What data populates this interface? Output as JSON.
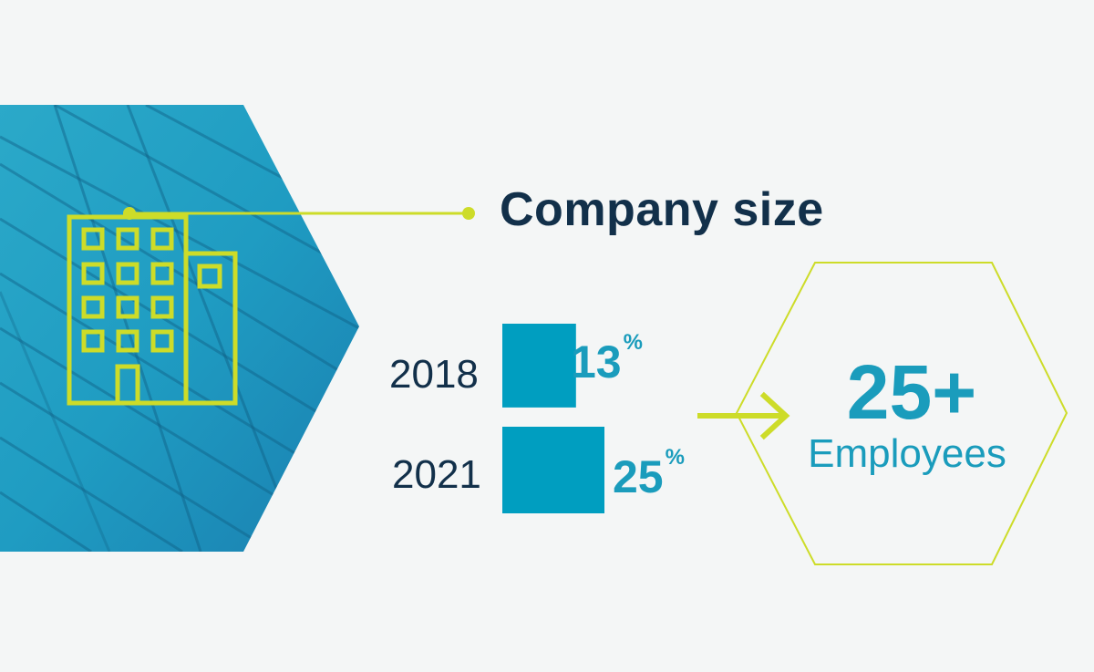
{
  "title": "Company size",
  "bars": [
    {
      "year": "2018",
      "value": 13,
      "label": "13",
      "unit": "%"
    },
    {
      "year": "2021",
      "value": 25,
      "label": "25",
      "unit": "%"
    }
  ],
  "result": {
    "value": "25+",
    "label": "Employees"
  },
  "icons": {
    "hero": "office-building-icon",
    "arrow": "arrow-right-icon"
  },
  "colors": {
    "accent": "#cddc29",
    "teal": "#1a9cbc",
    "navy": "#12304a",
    "bar": "#009ec0",
    "background": "#f4f6f6"
  }
}
